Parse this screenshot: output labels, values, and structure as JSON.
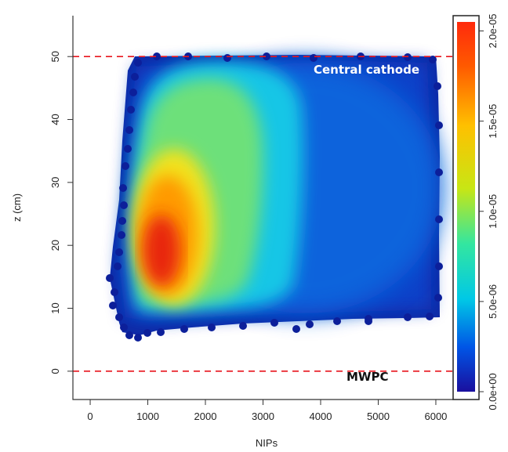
{
  "chart_data": {
    "type": "heatmap",
    "xlabel": "NIPs",
    "ylabel": "z (cm)",
    "xlim": [
      -300,
      6300
    ],
    "ylim": [
      -4.5,
      56.5
    ],
    "x_ticks": [
      "0",
      "1000",
      "2000",
      "3000",
      "4000",
      "5000",
      "6000"
    ],
    "y_ticks": [
      "0",
      "10",
      "20",
      "30",
      "40",
      "50"
    ],
    "x_tick_values": [
      0,
      1000,
      2000,
      3000,
      4000,
      5000,
      6000
    ],
    "y_tick_values": [
      0,
      10,
      20,
      30,
      40,
      50
    ],
    "density_peak": {
      "nips": 1300,
      "z": 20,
      "density": 2e-05
    },
    "data_extent": {
      "nips": [
        500,
        6000
      ],
      "z": [
        7,
        51
      ]
    },
    "annotations": [
      {
        "text": "Central cathode",
        "z": 50,
        "color": "#ffffff"
      },
      {
        "text": "MWPC",
        "z": 0,
        "color": "#111111"
      }
    ],
    "reference_lines": [
      {
        "label": "Central cathode",
        "z": 50,
        "style": "dashed",
        "color": "#e8141c"
      },
      {
        "label": "MWPC",
        "z": 0,
        "style": "dashed",
        "color": "#e8141c"
      }
    ],
    "colorbar": {
      "ticks": [
        "0.0e+00",
        "5.0e-06",
        "1.0e-05",
        "1.5e-05",
        "2.0e-05"
      ],
      "tick_values": [
        0,
        5e-06,
        1e-05,
        1.5e-05,
        2e-05
      ],
      "range": [
        0,
        2.05e-05
      ],
      "colors": [
        "#1a0f9e",
        "#0055e6",
        "#00c8e6",
        "#33e6a0",
        "#c8e614",
        "#ffc000",
        "#ff5a00",
        "#ff2a0c"
      ]
    },
    "grid": false
  }
}
